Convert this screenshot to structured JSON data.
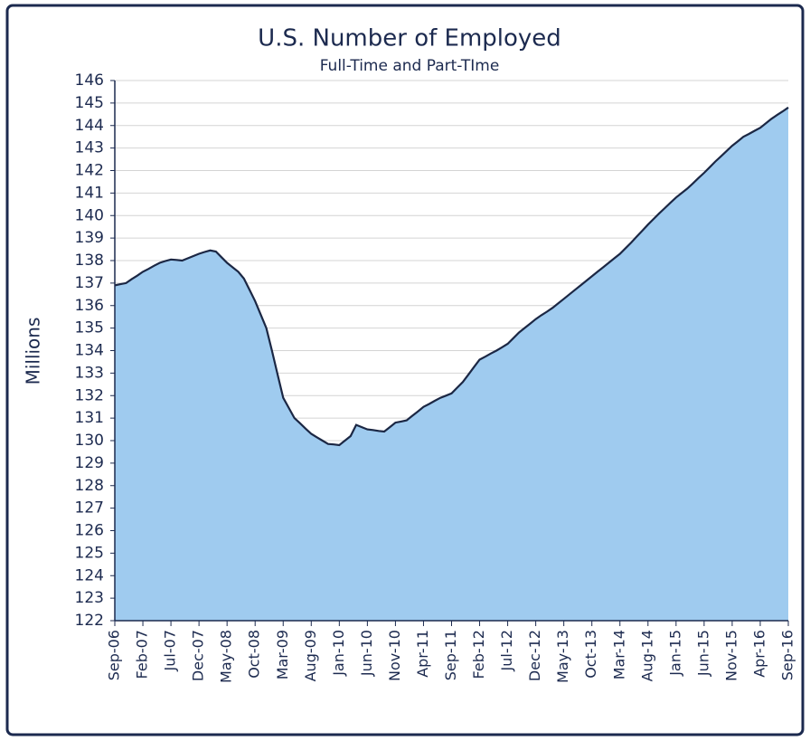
{
  "chart_data": {
    "type": "area",
    "title": "U.S. Number of Employed",
    "subtitle": "Full-Time and Part-TIme",
    "y_label": "Millions",
    "categories": [
      "Sep-06",
      null,
      null,
      null,
      null,
      "Feb-07",
      null,
      null,
      null,
      null,
      "Jul-07",
      null,
      null,
      null,
      null,
      "Dec-07",
      null,
      null,
      null,
      null,
      "May-08",
      null,
      null,
      null,
      null,
      "Oct-08",
      null,
      null,
      null,
      null,
      "Mar-09",
      null,
      null,
      null,
      null,
      "Aug-09",
      null,
      null,
      null,
      null,
      "Jan-10",
      null,
      null,
      null,
      null,
      "Jun-10",
      null,
      null,
      null,
      null,
      "Nov-10",
      null,
      null,
      null,
      null,
      "Apr-11",
      null,
      null,
      null,
      null,
      "Sep-11",
      null,
      null,
      null,
      null,
      "Feb-12",
      null,
      null,
      null,
      null,
      "Jul-12",
      null,
      null,
      null,
      null,
      "Dec-12",
      null,
      null,
      null,
      null,
      "May-13",
      null,
      null,
      null,
      null,
      "Oct-13",
      null,
      null,
      null,
      null,
      "Mar-14",
      null,
      null,
      null,
      null,
      "Aug-14",
      null,
      null,
      null,
      null,
      "Jan-15",
      null,
      null,
      null,
      null,
      "Jun-15",
      null,
      null,
      null,
      null,
      "Nov-15",
      null,
      null,
      null,
      null,
      "Apr-16",
      null,
      null,
      null,
      null,
      "Sep-16"
    ],
    "values": [
      136.9,
      136.95,
      137.0,
      137.17,
      137.33,
      137.5,
      137.63,
      137.77,
      137.9,
      137.98,
      138.05,
      138.03,
      138.0,
      138.1,
      138.2,
      138.3,
      138.38,
      138.45,
      138.4,
      138.15,
      137.9,
      137.7,
      137.5,
      137.2,
      136.7,
      136.2,
      135.6,
      135.0,
      134.0,
      132.95,
      131.9,
      131.45,
      131.0,
      130.77,
      130.53,
      130.3,
      130.15,
      130.0,
      129.85,
      129.83,
      129.8,
      130.0,
      130.2,
      130.7,
      130.6,
      130.5,
      130.47,
      130.43,
      130.4,
      130.6,
      130.8,
      130.85,
      130.9,
      131.1,
      131.3,
      131.5,
      131.63,
      131.77,
      131.9,
      132.0,
      132.1,
      132.35,
      132.6,
      132.93,
      133.27,
      133.6,
      133.73,
      133.87,
      134.0,
      134.15,
      134.3,
      134.55,
      134.8,
      135.0,
      135.2,
      135.4,
      135.57,
      135.73,
      135.9,
      136.1,
      136.3,
      136.5,
      136.7,
      136.9,
      137.1,
      137.3,
      137.5,
      137.7,
      137.9,
      138.1,
      138.3,
      138.55,
      138.8,
      139.07,
      139.33,
      139.6,
      139.85,
      140.1,
      140.33,
      140.57,
      140.8,
      141.0,
      141.2,
      141.43,
      141.67,
      141.9,
      142.15,
      142.4,
      142.63,
      142.87,
      143.1,
      143.3,
      143.5,
      143.63,
      143.77,
      143.9,
      144.1,
      144.3,
      144.47,
      144.63,
      144.8
    ],
    "color": "#9fcbef",
    "line_color": "#1b2744",
    "ylim": [
      122,
      146
    ],
    "yticks": [
      122,
      123,
      124,
      125,
      126,
      127,
      128,
      129,
      130,
      131,
      132,
      133,
      134,
      135,
      136,
      137,
      138,
      139,
      140,
      141,
      142,
      143,
      144,
      145,
      146
    ],
    "grid": true
  }
}
